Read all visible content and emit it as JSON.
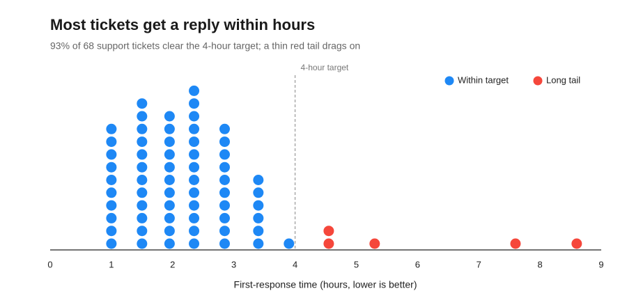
{
  "chart_data": {
    "type": "dot",
    "title": "Most tickets get a reply within hours",
    "subtitle": "93% of 68 support tickets clear the 4-hour target; a thin red tail drags on",
    "x_label": "First-response time (hours, lower is better)",
    "xlim": [
      0,
      9
    ],
    "xticks": [
      0,
      1,
      2,
      3,
      4,
      5,
      6,
      7,
      8,
      9
    ],
    "legend_position": "top-right",
    "annotation": {
      "value": 4,
      "label": "4-hour target"
    },
    "series": [
      {
        "name": "Within target",
        "color": "#1e88f5",
        "values": [
          1.0,
          1.0,
          1.0,
          1.0,
          1.0,
          1.0,
          1.0,
          1.0,
          1.0,
          1.0,
          1.5,
          1.5,
          1.5,
          1.5,
          1.5,
          1.5,
          1.5,
          1.5,
          1.5,
          1.5,
          1.5,
          1.5,
          1.95,
          1.95,
          1.95,
          1.95,
          1.95,
          1.95,
          1.95,
          1.95,
          1.95,
          1.95,
          1.95,
          2.35,
          2.35,
          2.35,
          2.35,
          2.35,
          2.35,
          2.35,
          2.35,
          2.35,
          2.35,
          2.35,
          2.35,
          2.35,
          2.85,
          2.85,
          2.85,
          2.85,
          2.85,
          2.85,
          2.85,
          2.85,
          2.85,
          2.85,
          3.4,
          3.4,
          3.4,
          3.4,
          3.4,
          3.4,
          3.9
        ]
      },
      {
        "name": "Long tail",
        "color": "#f5473b",
        "values": [
          4.55,
          4.55,
          5.3,
          7.6,
          8.6
        ]
      }
    ]
  }
}
